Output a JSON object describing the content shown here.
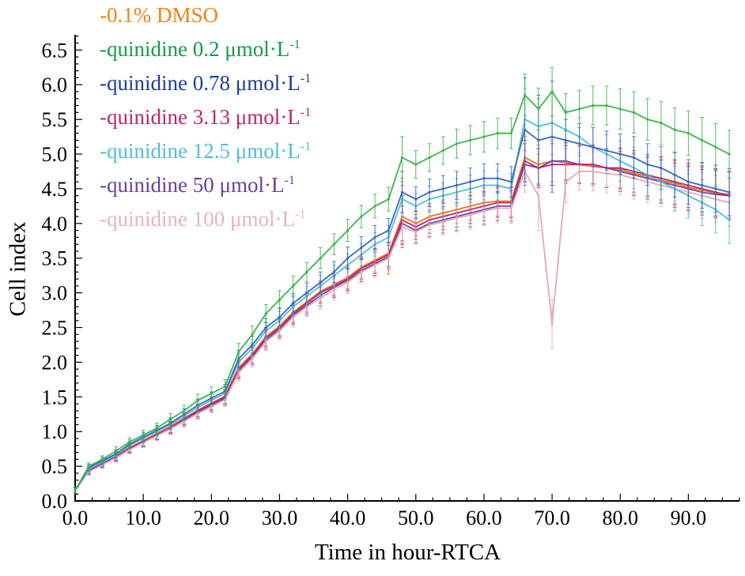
{
  "chart_data": {
    "type": "line",
    "title": "",
    "xlabel": "Time in hour-RTCA",
    "ylabel": "Cell index",
    "xlim": [
      0,
      97.5
    ],
    "ylim": [
      0,
      6.72
    ],
    "grid": false,
    "legend_position": "top-left",
    "x_major_ticks": [
      0,
      10,
      20,
      30,
      40,
      50,
      60,
      70,
      80,
      90
    ],
    "x_tick_labels": [
      "0.0",
      "10.0",
      "20.0",
      "30.0",
      "40.0",
      "50.0",
      "60.0",
      "70.0",
      "80.0",
      "90.0"
    ],
    "x_minor_step": 2.5,
    "y_major_ticks": [
      0,
      0.5,
      1,
      1.5,
      2,
      2.5,
      3,
      3.5,
      4,
      4.5,
      5,
      5.5,
      6,
      6.5
    ],
    "y_tick_labels": [
      "0.0",
      "0.5",
      "1.0",
      "1.5",
      "2.0",
      "2.5",
      "3.0",
      "3.5",
      "4.0",
      "4.5",
      "5.0",
      "5.5",
      "6.0",
      "6.5"
    ],
    "y_minor_step": 0.1,
    "x": [
      0,
      2,
      4,
      6,
      8,
      10,
      12,
      14,
      16,
      18,
      20,
      22,
      24,
      26,
      28,
      30,
      32,
      34,
      36,
      38,
      40,
      42,
      44,
      46,
      48,
      50,
      52,
      54,
      56,
      58,
      60,
      62,
      64,
      66,
      68,
      70,
      72,
      74,
      76,
      78,
      80,
      82,
      84,
      86,
      88,
      90,
      92,
      94,
      96
    ],
    "series": [
      {
        "name": "0.1% DMSO",
        "legend_pre": "-0.1% DMSO",
        "legend_sup": "",
        "text_color": "#ef8214",
        "color": "#ee7512",
        "z": 1,
        "values": [
          0.15,
          0.45,
          0.55,
          0.65,
          0.77,
          0.87,
          0.97,
          1.07,
          1.19,
          1.31,
          1.41,
          1.51,
          1.92,
          2.12,
          2.37,
          2.52,
          2.72,
          2.87,
          3.02,
          3.12,
          3.22,
          3.37,
          3.47,
          3.57,
          4.1,
          4.0,
          4.1,
          4.15,
          4.2,
          4.25,
          4.3,
          4.32,
          4.32,
          4.95,
          4.85,
          4.9,
          4.88,
          4.85,
          4.82,
          4.8,
          4.78,
          4.72,
          4.68,
          4.62,
          4.58,
          4.52,
          4.48,
          4.44,
          4.42
        ],
        "errors": [
          0.04,
          0.05,
          0.05,
          0.06,
          0.06,
          0.07,
          0.07,
          0.08,
          0.08,
          0.09,
          0.09,
          0.1,
          0.12,
          0.12,
          0.13,
          0.13,
          0.14,
          0.14,
          0.15,
          0.15,
          0.16,
          0.16,
          0.17,
          0.3,
          0.45,
          0.18,
          0.19,
          0.19,
          0.2,
          0.2,
          0.21,
          0.21,
          0.22,
          0.3,
          0.28,
          0.3,
          0.27,
          0.27,
          0.28,
          0.28,
          0.29,
          0.3,
          0.3,
          0.31,
          0.32,
          0.32,
          0.33,
          0.34,
          0.34
        ]
      },
      {
        "name": "quinidine 0.2 umol/L",
        "legend_pre": "-quinidine 0.2 μmol·L",
        "legend_sup": "-1",
        "text_color": "#0f9d49",
        "color": "#3db54a",
        "z": 7,
        "values": [
          0.15,
          0.5,
          0.6,
          0.72,
          0.85,
          0.95,
          1.05,
          1.18,
          1.3,
          1.45,
          1.55,
          1.65,
          2.15,
          2.4,
          2.7,
          2.9,
          3.1,
          3.3,
          3.5,
          3.7,
          3.9,
          4.1,
          4.25,
          4.35,
          4.95,
          4.85,
          4.95,
          5.05,
          5.15,
          5.2,
          5.25,
          5.3,
          5.3,
          5.85,
          5.65,
          5.9,
          5.6,
          5.65,
          5.7,
          5.7,
          5.65,
          5.6,
          5.5,
          5.45,
          5.35,
          5.3,
          5.2,
          5.1,
          5.0
        ],
        "errors": [
          0.04,
          0.05,
          0.05,
          0.06,
          0.06,
          0.07,
          0.07,
          0.08,
          0.08,
          0.09,
          0.09,
          0.1,
          0.12,
          0.12,
          0.13,
          0.13,
          0.14,
          0.14,
          0.15,
          0.15,
          0.16,
          0.16,
          0.17,
          0.17,
          0.3,
          0.2,
          0.2,
          0.2,
          0.21,
          0.21,
          0.22,
          0.22,
          0.22,
          0.3,
          0.3,
          0.35,
          0.27,
          0.27,
          0.28,
          0.28,
          0.29,
          0.3,
          0.3,
          0.31,
          0.32,
          0.32,
          0.33,
          0.34,
          0.34
        ]
      },
      {
        "name": "quinidine 0.78 umol/L",
        "legend_pre": "-quinidine 0.78 μmol·L",
        "legend_sup": "-1",
        "text_color": "#1c3e9d",
        "color": "#3a68c0",
        "z": 6,
        "values": [
          0.15,
          0.48,
          0.58,
          0.68,
          0.82,
          0.92,
          1.02,
          1.12,
          1.25,
          1.38,
          1.48,
          1.58,
          2.05,
          2.25,
          2.5,
          2.65,
          2.85,
          3.0,
          3.15,
          3.3,
          3.5,
          3.65,
          3.8,
          3.9,
          4.45,
          4.35,
          4.45,
          4.5,
          4.55,
          4.6,
          4.65,
          4.65,
          4.6,
          5.35,
          5.2,
          5.25,
          5.2,
          5.15,
          5.1,
          5.05,
          5.0,
          4.95,
          4.85,
          4.8,
          4.7,
          4.6,
          4.55,
          4.5,
          4.45
        ],
        "errors": [
          0.04,
          0.05,
          0.05,
          0.06,
          0.06,
          0.07,
          0.07,
          0.08,
          0.08,
          0.09,
          0.09,
          0.1,
          0.12,
          0.12,
          0.13,
          0.13,
          0.14,
          0.14,
          0.15,
          0.15,
          0.16,
          0.16,
          0.17,
          0.17,
          0.3,
          0.18,
          0.19,
          0.19,
          0.2,
          0.2,
          0.21,
          0.21,
          0.22,
          0.75,
          0.65,
          0.8,
          0.3,
          0.29,
          0.28,
          0.28,
          0.29,
          0.3,
          0.3,
          0.31,
          0.32,
          0.32,
          0.33,
          0.34,
          0.34
        ]
      },
      {
        "name": "quinidine 3.13 umol/L",
        "legend_pre": "-quinidine 3.13 μmol·L",
        "legend_sup": "-1",
        "text_color": "#c2256e",
        "color": "#c2256e",
        "z": 3,
        "values": [
          0.15,
          0.44,
          0.54,
          0.64,
          0.76,
          0.86,
          0.96,
          1.06,
          1.18,
          1.3,
          1.4,
          1.5,
          1.9,
          2.1,
          2.35,
          2.5,
          2.7,
          2.85,
          3.0,
          3.1,
          3.2,
          3.35,
          3.45,
          3.55,
          4.05,
          3.95,
          4.05,
          4.1,
          4.15,
          4.2,
          4.25,
          4.3,
          4.3,
          4.9,
          4.8,
          4.85,
          4.85,
          4.85,
          4.85,
          4.8,
          4.8,
          4.75,
          4.7,
          4.65,
          4.6,
          4.55,
          4.5,
          4.45,
          4.4
        ],
        "errors": [
          0.04,
          0.05,
          0.05,
          0.06,
          0.06,
          0.07,
          0.07,
          0.08,
          0.08,
          0.09,
          0.09,
          0.1,
          0.12,
          0.12,
          0.13,
          0.13,
          0.14,
          0.14,
          0.15,
          0.15,
          0.16,
          0.16,
          0.17,
          0.17,
          0.35,
          0.18,
          0.19,
          0.19,
          0.2,
          0.2,
          0.21,
          0.21,
          0.22,
          0.3,
          0.28,
          0.3,
          0.27,
          0.27,
          0.28,
          0.28,
          0.29,
          0.3,
          0.3,
          0.31,
          0.32,
          0.32,
          0.33,
          0.34,
          0.34
        ]
      },
      {
        "name": "quinidine 12.5 umol/L",
        "legend_pre": "-quinidine 12.5 μmol·L",
        "legend_sup": "-1",
        "text_color": "#56bcd8",
        "color": "#4fc0dc",
        "z": 5,
        "values": [
          0.15,
          0.46,
          0.56,
          0.66,
          0.8,
          0.9,
          1.0,
          1.1,
          1.22,
          1.35,
          1.45,
          1.55,
          2.0,
          2.2,
          2.45,
          2.6,
          2.8,
          2.95,
          3.1,
          3.25,
          3.4,
          3.55,
          3.7,
          3.8,
          4.35,
          4.25,
          4.35,
          4.4,
          4.45,
          4.5,
          4.55,
          4.55,
          4.5,
          5.5,
          5.4,
          5.45,
          5.35,
          5.25,
          5.1,
          5.0,
          4.9,
          4.8,
          4.7,
          4.6,
          4.5,
          4.4,
          4.3,
          4.2,
          4.05
        ],
        "errors": [
          0.04,
          0.05,
          0.05,
          0.06,
          0.06,
          0.07,
          0.07,
          0.08,
          0.08,
          0.09,
          0.09,
          0.1,
          0.12,
          0.12,
          0.13,
          0.13,
          0.14,
          0.14,
          0.15,
          0.15,
          0.16,
          0.16,
          0.17,
          0.17,
          0.25,
          0.18,
          0.19,
          0.19,
          0.2,
          0.2,
          0.21,
          0.21,
          0.22,
          0.45,
          0.4,
          0.45,
          0.27,
          0.27,
          0.28,
          0.28,
          0.29,
          0.3,
          0.3,
          0.31,
          0.32,
          0.32,
          0.33,
          0.34,
          0.34
        ]
      },
      {
        "name": "quinidine 50 umol/L",
        "legend_pre": "-quinidine 50 μmol·L",
        "legend_sup": "-1",
        "text_color": "#6b3f9d",
        "color": "#7147a5",
        "z": 2,
        "values": [
          0.15,
          0.43,
          0.53,
          0.63,
          0.75,
          0.85,
          0.95,
          1.05,
          1.16,
          1.28,
          1.38,
          1.48,
          1.88,
          2.08,
          2.32,
          2.48,
          2.68,
          2.82,
          2.96,
          3.08,
          3.18,
          3.32,
          3.42,
          3.52,
          4.0,
          3.9,
          4.0,
          4.05,
          4.1,
          4.15,
          4.2,
          4.25,
          4.25,
          4.85,
          4.8,
          4.9,
          4.9,
          4.85,
          4.85,
          4.8,
          4.75,
          4.7,
          4.65,
          4.6,
          4.55,
          4.5,
          4.45,
          4.42,
          4.4
        ],
        "errors": [
          0.04,
          0.05,
          0.05,
          0.06,
          0.06,
          0.07,
          0.07,
          0.08,
          0.08,
          0.09,
          0.09,
          0.1,
          0.12,
          0.12,
          0.13,
          0.13,
          0.14,
          0.14,
          0.15,
          0.15,
          0.16,
          0.16,
          0.17,
          0.17,
          0.25,
          0.18,
          0.19,
          0.19,
          0.2,
          0.2,
          0.21,
          0.21,
          0.22,
          0.3,
          0.28,
          0.35,
          0.27,
          0.27,
          0.28,
          0.28,
          0.29,
          0.3,
          0.3,
          0.31,
          0.32,
          0.32,
          0.33,
          0.34,
          0.34
        ]
      },
      {
        "name": "quinidine 100 umol/L",
        "legend_pre": "-quinidine 100 μmol·L",
        "legend_sup": "-1",
        "text_color": "#e7b5bd",
        "color": "#e2aab6",
        "z": 4,
        "values": [
          0.15,
          0.42,
          0.52,
          0.62,
          0.74,
          0.84,
          0.94,
          1.04,
          1.15,
          1.26,
          1.36,
          1.46,
          1.85,
          2.05,
          2.3,
          2.45,
          2.65,
          2.8,
          2.92,
          3.05,
          3.15,
          3.3,
          3.4,
          3.5,
          3.95,
          3.88,
          3.98,
          4.02,
          4.08,
          4.12,
          4.18,
          4.22,
          4.22,
          4.75,
          4.4,
          2.55,
          4.6,
          4.75,
          4.75,
          4.72,
          4.7,
          4.65,
          4.6,
          4.55,
          4.5,
          4.45,
          4.4,
          4.35,
          4.3
        ],
        "errors": [
          0.04,
          0.05,
          0.05,
          0.06,
          0.06,
          0.07,
          0.07,
          0.08,
          0.08,
          0.09,
          0.09,
          0.1,
          0.12,
          0.12,
          0.13,
          0.13,
          0.14,
          0.14,
          0.15,
          0.15,
          0.16,
          0.16,
          0.17,
          0.17,
          0.22,
          0.18,
          0.19,
          0.19,
          0.2,
          0.2,
          0.21,
          0.21,
          0.22,
          0.3,
          0.5,
          0.35,
          0.3,
          0.27,
          0.28,
          0.28,
          0.29,
          0.3,
          0.3,
          0.31,
          0.32,
          0.32,
          0.33,
          0.34,
          0.34
        ]
      }
    ]
  }
}
